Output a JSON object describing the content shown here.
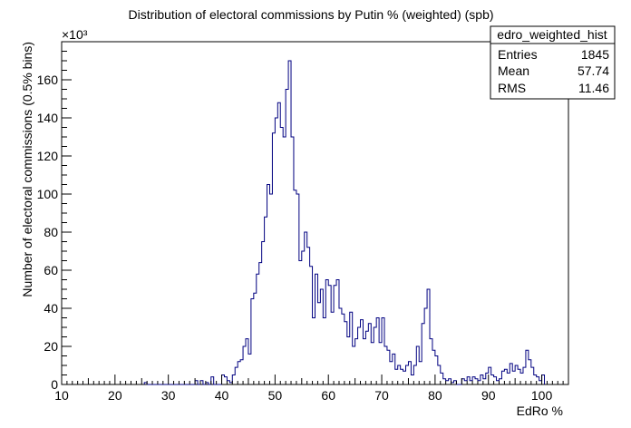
{
  "chart_data": {
    "type": "histogram",
    "title": "Distribution of electoral commissions by Putin % (weighted) (spb)",
    "xlabel": "EdRo %",
    "ylabel": "Number of electoral commissions (0.5% bins)",
    "y_multiplier_label": "×10³",
    "xlim": [
      10,
      105
    ],
    "ylim": [
      0,
      180
    ],
    "x_ticks": [
      10,
      20,
      30,
      40,
      50,
      60,
      70,
      80,
      90,
      100
    ],
    "y_ticks": [
      0,
      20,
      40,
      60,
      80,
      100,
      120,
      140,
      160
    ],
    "bin_width": 0.5,
    "line_color": "#000080",
    "bins": [
      [
        25.5,
        1
      ],
      [
        35,
        2
      ],
      [
        36,
        2
      ],
      [
        37,
        1
      ],
      [
        38,
        4
      ],
      [
        40,
        5
      ],
      [
        40.5,
        4
      ],
      [
        41,
        2
      ],
      [
        41.5,
        1
      ],
      [
        42,
        5
      ],
      [
        42.5,
        9
      ],
      [
        43,
        12
      ],
      [
        43.5,
        13
      ],
      [
        44,
        20
      ],
      [
        44.5,
        24
      ],
      [
        45,
        16
      ],
      [
        45.5,
        45
      ],
      [
        46,
        48
      ],
      [
        46.5,
        58
      ],
      [
        47,
        64
      ],
      [
        47.5,
        75
      ],
      [
        48,
        88
      ],
      [
        48.5,
        105
      ],
      [
        49,
        100
      ],
      [
        49.5,
        132
      ],
      [
        50,
        140
      ],
      [
        50.5,
        148
      ],
      [
        51,
        135
      ],
      [
        51.5,
        130
      ],
      [
        52,
        155
      ],
      [
        52.5,
        170
      ],
      [
        53,
        130
      ],
      [
        53.5,
        102
      ],
      [
        54,
        100
      ],
      [
        54.5,
        65
      ],
      [
        55,
        70
      ],
      [
        55.5,
        80
      ],
      [
        56,
        72
      ],
      [
        56.5,
        62
      ],
      [
        57,
        35
      ],
      [
        57.5,
        58
      ],
      [
        58,
        43
      ],
      [
        58.5,
        50
      ],
      [
        59,
        35
      ],
      [
        59.5,
        55
      ],
      [
        60,
        52
      ],
      [
        60.5,
        38
      ],
      [
        61,
        52
      ],
      [
        61.5,
        55
      ],
      [
        62,
        40
      ],
      [
        62.5,
        37
      ],
      [
        63,
        33
      ],
      [
        63.5,
        25
      ],
      [
        64,
        38
      ],
      [
        64.5,
        20
      ],
      [
        65,
        24
      ],
      [
        65.5,
        30
      ],
      [
        66,
        34
      ],
      [
        66.5,
        24
      ],
      [
        67,
        28
      ],
      [
        67.5,
        32
      ],
      [
        68,
        22
      ],
      [
        68.5,
        30
      ],
      [
        69,
        35
      ],
      [
        69.5,
        22
      ],
      [
        70,
        35
      ],
      [
        70.5,
        20
      ],
      [
        71,
        18
      ],
      [
        71.5,
        12
      ],
      [
        72,
        16
      ],
      [
        72.5,
        8
      ],
      [
        73,
        10
      ],
      [
        73.5,
        8
      ],
      [
        74,
        7
      ],
      [
        74.5,
        10
      ],
      [
        75,
        12
      ],
      [
        75.5,
        5
      ],
      [
        76,
        10
      ],
      [
        76.5,
        20
      ],
      [
        77,
        12
      ],
      [
        77.5,
        32
      ],
      [
        78,
        40
      ],
      [
        78.5,
        50
      ],
      [
        79,
        24
      ],
      [
        79.5,
        18
      ],
      [
        80,
        15
      ],
      [
        80.5,
        10
      ],
      [
        81,
        6
      ],
      [
        81.5,
        3
      ],
      [
        82,
        2
      ],
      [
        82.5,
        3
      ],
      [
        83,
        1
      ],
      [
        83.5,
        2
      ],
      [
        85,
        3
      ],
      [
        85.5,
        2
      ],
      [
        86,
        4
      ],
      [
        86.5,
        2
      ],
      [
        87,
        4
      ],
      [
        87.5,
        3
      ],
      [
        88,
        2
      ],
      [
        88.5,
        5
      ],
      [
        89,
        3
      ],
      [
        89.5,
        6
      ],
      [
        90,
        9
      ],
      [
        90.5,
        5
      ],
      [
        91,
        4
      ],
      [
        91.5,
        2
      ],
      [
        92,
        3
      ],
      [
        92.5,
        7
      ],
      [
        93,
        8
      ],
      [
        93.5,
        6
      ],
      [
        94,
        11
      ],
      [
        94.5,
        7
      ],
      [
        95,
        10
      ],
      [
        95.5,
        8
      ],
      [
        96,
        6
      ],
      [
        96.5,
        9
      ],
      [
        97,
        18
      ],
      [
        97.5,
        13
      ],
      [
        98,
        9
      ],
      [
        98.5,
        5
      ],
      [
        99,
        4
      ],
      [
        99.5,
        2
      ],
      [
        100,
        5
      ]
    ]
  },
  "stats_box": {
    "name": "edro_weighted_hist",
    "rows": [
      {
        "label": "Entries",
        "value": "1845"
      },
      {
        "label": "Mean",
        "value": "57.74"
      },
      {
        "label": "RMS",
        "value": "11.46"
      }
    ]
  }
}
